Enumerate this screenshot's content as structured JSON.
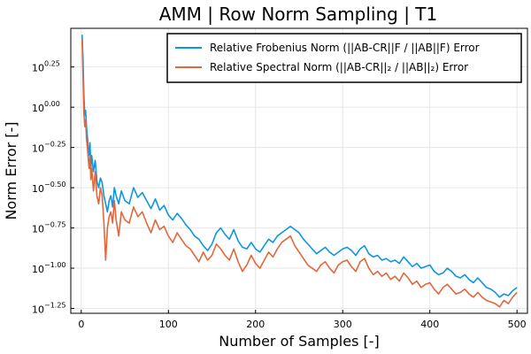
{
  "chart_data": {
    "type": "line",
    "title": "AMM | Row Norm Sampling | T1",
    "xlabel": "Number of Samples [-]",
    "ylabel": "Norm Error [-]",
    "xlim": [
      -12,
      512
    ],
    "ylim": [
      -1.28,
      0.49
    ],
    "yscale": "log10",
    "grid": true,
    "legend_position": "top-right",
    "x_ticks": [
      {
        "value": 0,
        "label": "0"
      },
      {
        "value": 100,
        "label": "100"
      },
      {
        "value": 200,
        "label": "200"
      },
      {
        "value": 300,
        "label": "300"
      },
      {
        "value": 400,
        "label": "400"
      },
      {
        "value": 500,
        "label": "500"
      }
    ],
    "y_ticks": [
      {
        "value": 0.25,
        "base": "10",
        "exp": "0.25"
      },
      {
        "value": 0.0,
        "base": "10",
        "exp": "0.00"
      },
      {
        "value": -0.25,
        "base": "10",
        "exp": "−0.25"
      },
      {
        "value": -0.5,
        "base": "10",
        "exp": "−0.50"
      },
      {
        "value": -0.75,
        "base": "10",
        "exp": "−0.75"
      },
      {
        "value": -1.0,
        "base": "10",
        "exp": "−1.00"
      },
      {
        "value": -1.25,
        "base": "10",
        "exp": "−1.25"
      }
    ],
    "series": [
      {
        "name": "Relative Frobenius Norm (||AB-CR||F / ||AB||F) Error",
        "color": "#0f96e0",
        "x": [
          1,
          2,
          3,
          4,
          5,
          6,
          7,
          8,
          9,
          10,
          11,
          12,
          14,
          16,
          18,
          20,
          22,
          24,
          26,
          28,
          30,
          32,
          34,
          36,
          38,
          40,
          43,
          46,
          50,
          55,
          60,
          65,
          70,
          75,
          80,
          85,
          90,
          95,
          100,
          105,
          110,
          115,
          120,
          125,
          130,
          135,
          140,
          145,
          150,
          155,
          160,
          165,
          170,
          175,
          180,
          185,
          190,
          195,
          200,
          205,
          210,
          215,
          220,
          225,
          230,
          235,
          240,
          245,
          250,
          255,
          260,
          265,
          270,
          275,
          280,
          285,
          290,
          295,
          300,
          305,
          310,
          315,
          320,
          325,
          330,
          335,
          340,
          345,
          350,
          355,
          360,
          365,
          370,
          375,
          380,
          385,
          390,
          395,
          400,
          405,
          410,
          415,
          420,
          425,
          430,
          435,
          440,
          445,
          450,
          455,
          460,
          465,
          470,
          475,
          480,
          485,
          490,
          495,
          500
        ],
        "y": [
          0.45,
          0.3,
          0.08,
          -0.05,
          -0.02,
          -0.12,
          -0.18,
          -0.25,
          -0.3,
          -0.22,
          -0.38,
          -0.3,
          -0.4,
          -0.33,
          -0.46,
          -0.5,
          -0.44,
          -0.47,
          -0.55,
          -0.6,
          -0.65,
          -0.58,
          -0.55,
          -0.62,
          -0.5,
          -0.55,
          -0.6,
          -0.52,
          -0.58,
          -0.6,
          -0.5,
          -0.56,
          -0.53,
          -0.58,
          -0.63,
          -0.57,
          -0.64,
          -0.61,
          -0.67,
          -0.7,
          -0.66,
          -0.69,
          -0.73,
          -0.76,
          -0.8,
          -0.82,
          -0.86,
          -0.89,
          -0.85,
          -0.78,
          -0.75,
          -0.79,
          -0.82,
          -0.76,
          -0.83,
          -0.87,
          -0.88,
          -0.84,
          -0.88,
          -0.9,
          -0.86,
          -0.82,
          -0.84,
          -0.8,
          -0.78,
          -0.76,
          -0.74,
          -0.76,
          -0.78,
          -0.82,
          -0.85,
          -0.88,
          -0.91,
          -0.89,
          -0.87,
          -0.9,
          -0.92,
          -0.9,
          -0.88,
          -0.87,
          -0.89,
          -0.92,
          -0.88,
          -0.86,
          -0.91,
          -0.93,
          -0.92,
          -0.95,
          -0.94,
          -0.96,
          -0.95,
          -0.97,
          -0.93,
          -0.96,
          -0.99,
          -0.97,
          -1.0,
          -0.99,
          -0.98,
          -1.02,
          -1.04,
          -1.03,
          -1.0,
          -1.02,
          -1.05,
          -1.06,
          -1.04,
          -1.07,
          -1.09,
          -1.06,
          -1.09,
          -1.12,
          -1.13,
          -1.15,
          -1.18,
          -1.16,
          -1.17,
          -1.14,
          -1.12
        ]
      },
      {
        "name": "Relative Spectral Norm (||AB-CR||₂ / ||AB||₂) Error",
        "color": "#e2673c",
        "x": [
          1,
          2,
          3,
          4,
          5,
          6,
          7,
          8,
          9,
          10,
          11,
          12,
          14,
          16,
          18,
          20,
          22,
          24,
          26,
          28,
          30,
          32,
          34,
          36,
          38,
          40,
          43,
          46,
          50,
          55,
          60,
          65,
          70,
          75,
          80,
          85,
          90,
          95,
          100,
          105,
          110,
          115,
          120,
          125,
          130,
          135,
          140,
          145,
          150,
          155,
          160,
          165,
          170,
          175,
          180,
          185,
          190,
          195,
          200,
          205,
          210,
          215,
          220,
          225,
          230,
          235,
          240,
          245,
          250,
          255,
          260,
          265,
          270,
          275,
          280,
          285,
          290,
          295,
          300,
          305,
          310,
          315,
          320,
          325,
          330,
          335,
          340,
          345,
          350,
          355,
          360,
          365,
          370,
          375,
          380,
          385,
          390,
          395,
          400,
          405,
          410,
          415,
          420,
          425,
          430,
          435,
          440,
          445,
          450,
          455,
          460,
          465,
          470,
          475,
          480,
          485,
          490,
          495,
          500
        ],
        "y": [
          0.42,
          0.2,
          -0.03,
          -0.12,
          -0.08,
          -0.2,
          -0.25,
          -0.32,
          -0.38,
          -0.3,
          -0.45,
          -0.38,
          -0.52,
          -0.4,
          -0.55,
          -0.6,
          -0.5,
          -0.55,
          -0.72,
          -0.95,
          -0.75,
          -0.68,
          -0.65,
          -0.72,
          -0.58,
          -0.7,
          -0.8,
          -0.65,
          -0.7,
          -0.72,
          -0.62,
          -0.68,
          -0.65,
          -0.72,
          -0.78,
          -0.7,
          -0.76,
          -0.74,
          -0.8,
          -0.84,
          -0.78,
          -0.82,
          -0.86,
          -0.88,
          -0.92,
          -0.96,
          -0.9,
          -0.95,
          -0.92,
          -0.85,
          -0.88,
          -0.92,
          -0.95,
          -0.88,
          -0.96,
          -1.02,
          -0.98,
          -0.92,
          -0.97,
          -1.0,
          -0.95,
          -0.9,
          -0.93,
          -0.88,
          -0.84,
          -0.82,
          -0.8,
          -0.86,
          -0.9,
          -0.94,
          -0.98,
          -1.0,
          -1.02,
          -0.98,
          -0.96,
          -1.0,
          -1.03,
          -0.98,
          -0.96,
          -0.95,
          -0.99,
          -1.02,
          -0.96,
          -0.94,
          -1.0,
          -1.04,
          -1.02,
          -1.05,
          -1.03,
          -1.07,
          -1.05,
          -1.08,
          -1.03,
          -1.06,
          -1.1,
          -1.08,
          -1.12,
          -1.1,
          -1.09,
          -1.13,
          -1.16,
          -1.12,
          -1.1,
          -1.13,
          -1.16,
          -1.15,
          -1.13,
          -1.16,
          -1.18,
          -1.15,
          -1.18,
          -1.2,
          -1.21,
          -1.22,
          -1.24,
          -1.2,
          -1.22,
          -1.18,
          -1.15
        ]
      }
    ]
  }
}
